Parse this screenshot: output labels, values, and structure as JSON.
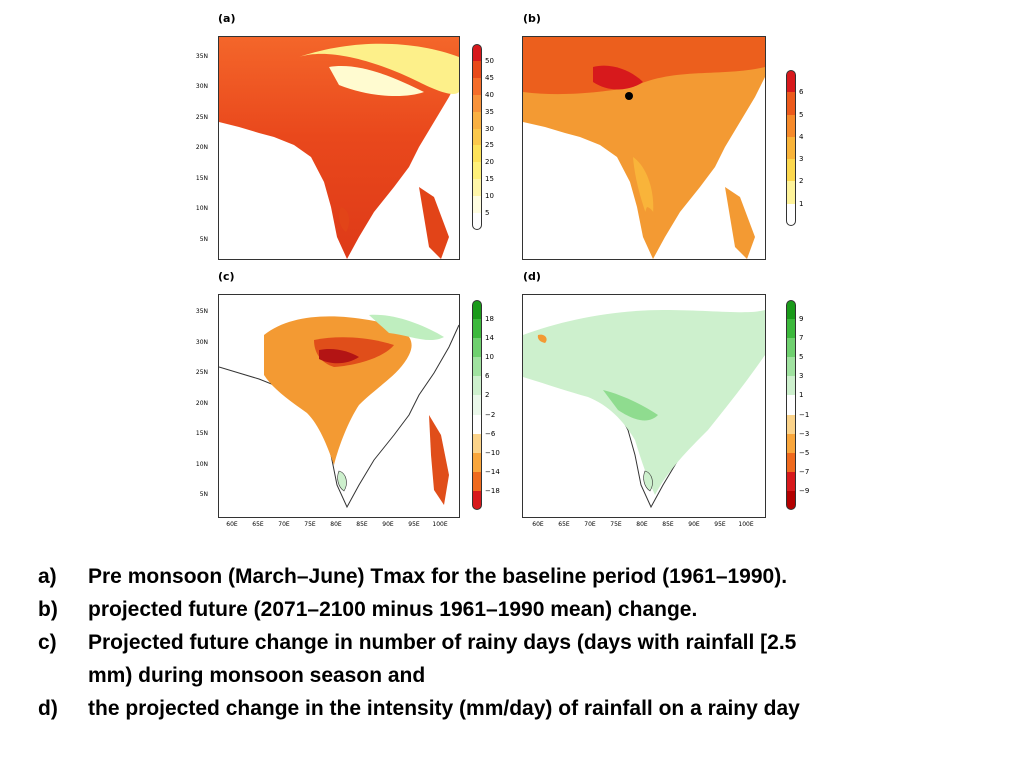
{
  "panels": [
    {
      "id": "a",
      "label": "(a)",
      "scheme": "heat",
      "colorbar": {
        "labels": [
          "50",
          "45",
          "40",
          "35",
          "30",
          "25",
          "20",
          "15",
          "10",
          "5"
        ],
        "colors": [
          "#d7191c",
          "#e84a1a",
          "#f46d2a",
          "#f7923a",
          "#f9b042",
          "#fbc84c",
          "#fde25a",
          "#fef07a",
          "#fff6a8",
          "#fffde0",
          "#ffffff"
        ]
      }
    },
    {
      "id": "b",
      "label": "(b)",
      "scheme": "heat",
      "colorbar": {
        "labels": [
          "6",
          "5",
          "4",
          "3",
          "2",
          "1"
        ],
        "colors": [
          "#d7191c",
          "#ec5a1c",
          "#f68a2b",
          "#f9b43a",
          "#fcd84f",
          "#fef39a",
          "#ffffff"
        ]
      }
    },
    {
      "id": "c",
      "label": "(c)",
      "scheme": "diverging",
      "colorbar": {
        "labels": [
          "18",
          "14",
          "10",
          "6",
          "2",
          "−2",
          "−6",
          "−10",
          "−14",
          "−18"
        ],
        "colors": [
          "#1a9a1a",
          "#3cb83c",
          "#6fd06f",
          "#a0e2a0",
          "#cdf0cd",
          "#eaf8ea",
          "#ffffff",
          "#fbd38a",
          "#f9a63c",
          "#ef6a1e",
          "#d7191c"
        ]
      }
    },
    {
      "id": "d",
      "label": "(d)",
      "scheme": "diverging",
      "colorbar": {
        "labels": [
          "9",
          "7",
          "5",
          "3",
          "1",
          "−1",
          "−3",
          "−5",
          "−7",
          "−9"
        ],
        "colors": [
          "#1a9a1a",
          "#3cb83c",
          "#6fd06f",
          "#a0e2a0",
          "#cdf0cd",
          "#ffffff",
          "#fbd38a",
          "#f9a63c",
          "#ef6a1e",
          "#d7191c",
          "#b30000"
        ]
      }
    }
  ],
  "lat_ticks": [
    "35N",
    "30N",
    "25N",
    "20N",
    "15N",
    "10N",
    "5N"
  ],
  "lon_ticks": [
    "60E",
    "65E",
    "70E",
    "75E",
    "80E",
    "85E",
    "90E",
    "95E",
    "100E"
  ],
  "caption": [
    {
      "letter": "a)",
      "text": "Pre monsoon (March–June) Tmax for the baseline period (1961–1990)."
    },
    {
      "letter": "b)",
      "text": " projected future (2071–2100 minus 1961–1990 mean) change."
    },
    {
      "letter": "c)",
      "text": " Projected future change in number of rainy days (days with rainfall [2.5"
    },
    {
      "letter": "",
      "text": "mm) during monsoon season and"
    },
    {
      "letter": "d)",
      "text": " the projected change in the intensity (mm/day) of rainfall on a rainy day"
    }
  ]
}
